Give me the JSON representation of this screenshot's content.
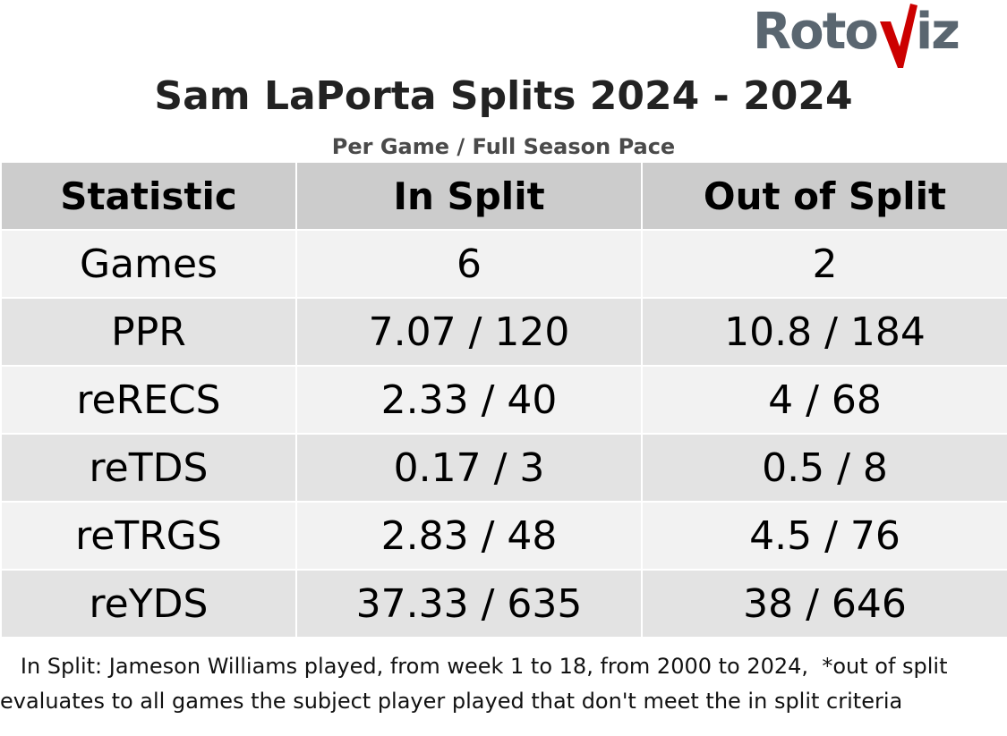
{
  "logo": {
    "text_left": "Roto",
    "text_right": "iz",
    "mark": "red-v-lightning-icon",
    "colors": {
      "text": "#5a6670",
      "mark": "#cc0000"
    }
  },
  "title": "Sam LaPorta Splits 2024 - 2024",
  "subtitle": "Per Game / Full Season Pace",
  "chart_data": {
    "type": "table",
    "columns": [
      "Statistic",
      "In Split",
      "Out of Split"
    ],
    "rows": [
      [
        "Games",
        "6",
        "2"
      ],
      [
        "PPR",
        "7.07 / 120",
        "10.8 / 184"
      ],
      [
        "reRECS",
        "2.33 / 40",
        "4 / 68"
      ],
      [
        "reTDS",
        "0.17 / 3",
        "0.5 / 8"
      ],
      [
        "reTRGS",
        "2.83 / 48",
        "4.5 / 76"
      ],
      [
        "reYDS",
        "37.33 / 635",
        "38 / 646"
      ]
    ]
  },
  "footnote": "   In Split: Jameson Williams played, from week 1 to 18, from 2000 to 2024,  *out of split evaluates to all games the subject player played that don't meet the in split criteria",
  "colors": {
    "header_bg": "#cccccc",
    "row_light": "#f2f2f2",
    "row_dark": "#e3e3e3",
    "title": "#222222",
    "subtitle": "#4a4a4a"
  }
}
